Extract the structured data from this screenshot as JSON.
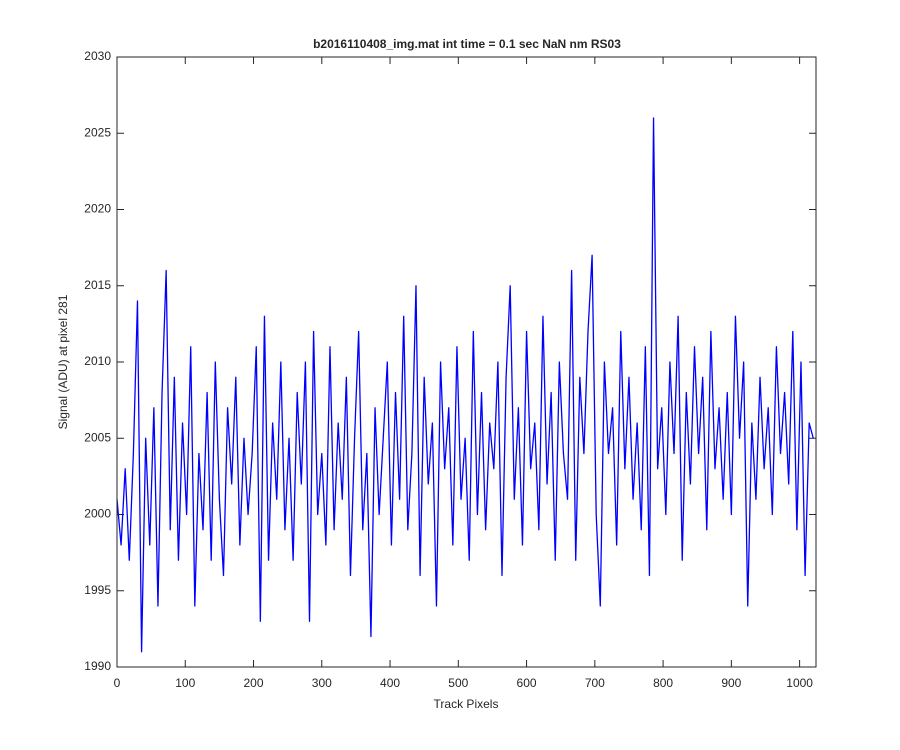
{
  "chart_data": {
    "type": "line",
    "title": "b2016110408_img.mat int time = 0.1 sec  NaN nm RS03",
    "x_label": "Track Pixels",
    "y_label": "Signal (ADU) at pixel 281",
    "xlim": [
      0,
      1024
    ],
    "ylim": [
      1990,
      2030
    ],
    "xticks": [
      0,
      100,
      200,
      300,
      400,
      500,
      600,
      700,
      800,
      900,
      1000
    ],
    "yticks": [
      1990,
      1995,
      2000,
      2005,
      2010,
      2015,
      2020,
      2025,
      2030
    ],
    "x": [
      0,
      6,
      12,
      18,
      24,
      30,
      36,
      42,
      48,
      54,
      60,
      66,
      72,
      78,
      84,
      90,
      96,
      102,
      108,
      114,
      120,
      126,
      132,
      138,
      144,
      150,
      156,
      162,
      168,
      174,
      180,
      186,
      192,
      198,
      204,
      210,
      216,
      222,
      228,
      234,
      240,
      246,
      252,
      258,
      264,
      270,
      276,
      282,
      288,
      294,
      300,
      306,
      312,
      318,
      324,
      330,
      336,
      342,
      348,
      354,
      360,
      366,
      372,
      378,
      384,
      390,
      396,
      402,
      408,
      414,
      420,
      426,
      432,
      438,
      444,
      450,
      456,
      462,
      468,
      474,
      480,
      486,
      492,
      498,
      504,
      510,
      516,
      522,
      528,
      534,
      540,
      546,
      552,
      558,
      564,
      570,
      576,
      582,
      588,
      594,
      600,
      606,
      612,
      618,
      624,
      630,
      636,
      642,
      648,
      654,
      660,
      666,
      672,
      678,
      684,
      690,
      696,
      702,
      708,
      714,
      720,
      726,
      732,
      738,
      744,
      750,
      756,
      762,
      768,
      774,
      780,
      786,
      792,
      798,
      804,
      810,
      816,
      822,
      828,
      834,
      840,
      846,
      852,
      858,
      864,
      870,
      876,
      882,
      888,
      894,
      900,
      906,
      912,
      918,
      924,
      930,
      936,
      942,
      948,
      954,
      960,
      966,
      972,
      978,
      984,
      990,
      996,
      1002,
      1008,
      1014,
      1020
    ],
    "series": [
      {
        "name": "signal",
        "color": "#0000ff",
        "values": [
          2001,
          1998,
          2003,
          1997,
          2004,
          2014,
          1991,
          2005,
          1998,
          2007,
          1994,
          2008,
          2016,
          1999,
          2009,
          1997,
          2006,
          2000,
          2011,
          1994,
          2004,
          1999,
          2008,
          1997,
          2010,
          2001,
          1996,
          2007,
          2002,
          2009,
          1998,
          2005,
          2000,
          2004,
          2011,
          1993,
          2013,
          1997,
          2006,
          2001,
          2010,
          1999,
          2005,
          1997,
          2008,
          2002,
          2010,
          1993,
          2012,
          2000,
          2004,
          1998,
          2011,
          1999,
          2006,
          2001,
          2009,
          1996,
          2005,
          2012,
          1999,
          2004,
          1992,
          2007,
          2000,
          2005,
          2010,
          1998,
          2008,
          2001,
          2013,
          1999,
          2004,
          2015,
          1996,
          2009,
          2002,
          2006,
          1994,
          2010,
          2003,
          2007,
          1998,
          2011,
          2001,
          2005,
          1997,
          2012,
          2000,
          2008,
          1999,
          2006,
          2003,
          2010,
          1996,
          2009,
          2015,
          2001,
          2007,
          1998,
          2012,
          2003,
          2006,
          1999,
          2013,
          2002,
          2008,
          1997,
          2010,
          2004,
          2001,
          2016,
          1997,
          2009,
          2004,
          2012,
          2017,
          2000,
          1994,
          2010,
          2004,
          2007,
          1998,
          2012,
          2003,
          2009,
          2001,
          2006,
          1999,
          2011,
          1996,
          2026,
          2003,
          2007,
          2000,
          2010,
          2004,
          2013,
          1997,
          2008,
          2002,
          2011,
          2004,
          2009,
          1999,
          2012,
          2003,
          2007,
          2001,
          2008,
          2000,
          2013,
          2005,
          2010,
          1994,
          2006,
          2001,
          2009,
          2003,
          2007,
          2000,
          2011,
          2004,
          2008,
          2002,
          2012,
          1999,
          2010,
          1996,
          2006,
          2005
        ]
      }
    ]
  }
}
